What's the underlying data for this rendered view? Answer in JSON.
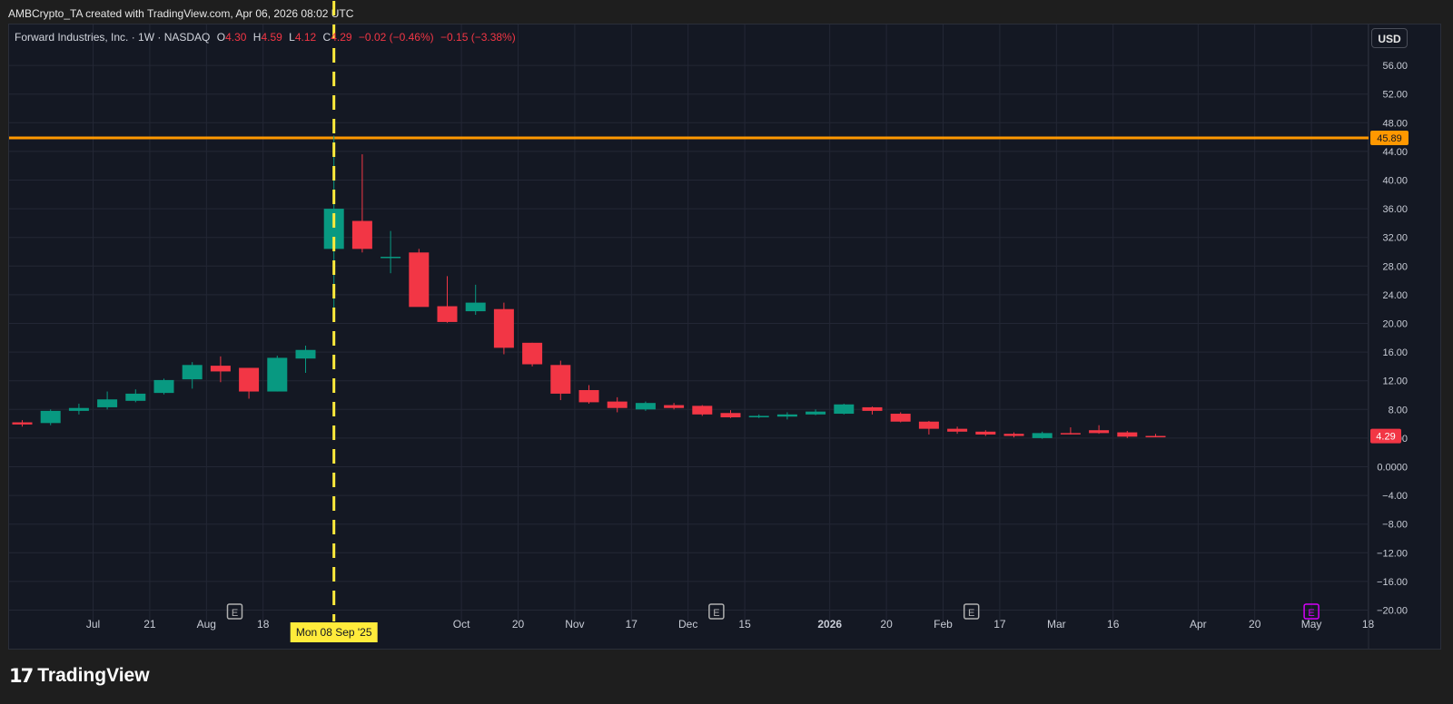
{
  "credit": "AMBCrypto_TA created with TradingView.com, Apr 06, 2026 08:02 UTC",
  "legend": {
    "symbol": "Forward Industries, Inc. · 1W · NASDAQ",
    "o_label": "O",
    "o_value": "4.30",
    "h_label": "H",
    "h_value": "4.59",
    "l_label": "L",
    "l_value": "4.12",
    "c_label": "C",
    "c_value": "4.29",
    "change": "−0.02 (−0.46%)",
    "change2": "−0.15 (−3.38%)"
  },
  "currency_button": "USD",
  "brand": "TradingView",
  "colors": {
    "up": "#089981",
    "down": "#f23645",
    "level_line": "#ff9800",
    "crosshair": "#ffeb3b",
    "earnings": "#b0b0b0",
    "earnings_future": "#d500f9"
  },
  "chart_data": {
    "type": "candlestick",
    "timeframe": "1W",
    "ylim": [
      -20,
      56
    ],
    "y_ticks": [
      "56.00",
      "52.00",
      "48.00",
      "44.00",
      "40.00",
      "36.00",
      "32.00",
      "28.00",
      "24.00",
      "20.00",
      "16.00",
      "12.00",
      "8.00",
      "4.00",
      "0.0000",
      "−4.00",
      "−8.00",
      "−12.00",
      "−16.00",
      "−20.00"
    ],
    "x_ticks": [
      {
        "label": "Jul",
        "idx": 2.5,
        "bold": false
      },
      {
        "label": "21",
        "idx": 4.5,
        "bold": false
      },
      {
        "label": "Aug",
        "idx": 6.5,
        "bold": false
      },
      {
        "label": "18",
        "idx": 8.5,
        "bold": false
      },
      {
        "label": "Oct",
        "idx": 15.5,
        "bold": false
      },
      {
        "label": "20",
        "idx": 17.5,
        "bold": false
      },
      {
        "label": "Nov",
        "idx": 19.5,
        "bold": false
      },
      {
        "label": "17",
        "idx": 21.5,
        "bold": false
      },
      {
        "label": "Dec",
        "idx": 23.5,
        "bold": false
      },
      {
        "label": "15",
        "idx": 25.5,
        "bold": false
      },
      {
        "label": "2026",
        "idx": 28.5,
        "bold": true
      },
      {
        "label": "20",
        "idx": 30.5,
        "bold": false
      },
      {
        "label": "Feb",
        "idx": 32.5,
        "bold": false
      },
      {
        "label": "17",
        "idx": 34.5,
        "bold": false
      },
      {
        "label": "Mar",
        "idx": 36.5,
        "bold": false
      },
      {
        "label": "16",
        "idx": 38.5,
        "bold": false
      },
      {
        "label": "Apr",
        "idx": 41.5,
        "bold": false
      },
      {
        "label": "20",
        "idx": 43.5,
        "bold": false
      },
      {
        "label": "May",
        "idx": 45.5,
        "bold": false
      },
      {
        "label": "18",
        "idx": 47.5,
        "bold": false
      }
    ],
    "candles": [
      {
        "o": 6.2,
        "h": 6.5,
        "l": 5.6,
        "c": 5.9
      },
      {
        "o": 6.1,
        "h": 8.0,
        "l": 5.8,
        "c": 7.8
      },
      {
        "o": 7.8,
        "h": 8.8,
        "l": 7.3,
        "c": 8.2
      },
      {
        "o": 8.3,
        "h": 10.5,
        "l": 8.0,
        "c": 9.4
      },
      {
        "o": 9.2,
        "h": 10.8,
        "l": 9.0,
        "c": 10.2
      },
      {
        "o": 10.3,
        "h": 12.3,
        "l": 10.1,
        "c": 12.1
      },
      {
        "o": 12.2,
        "h": 14.6,
        "l": 10.9,
        "c": 14.2
      },
      {
        "o": 14.1,
        "h": 15.4,
        "l": 11.8,
        "c": 13.3
      },
      {
        "o": 13.8,
        "h": 13.8,
        "l": 9.5,
        "c": 10.5
      },
      {
        "o": 10.5,
        "h": 15.5,
        "l": 10.5,
        "c": 15.2
      },
      {
        "o": 15.1,
        "h": 16.9,
        "l": 13.1,
        "c": 16.3
      },
      {
        "o": 30.4,
        "h": 46.2,
        "l": 21.0,
        "c": 36.0
      },
      {
        "o": 34.3,
        "h": 43.6,
        "l": 29.9,
        "c": 30.4
      },
      {
        "o": 29.2,
        "h": 32.9,
        "l": 27.0,
        "c": 29.3
      },
      {
        "o": 29.9,
        "h": 30.4,
        "l": 22.4,
        "c": 22.3
      },
      {
        "o": 22.4,
        "h": 26.6,
        "l": 20.1,
        "c": 20.2
      },
      {
        "o": 21.7,
        "h": 25.4,
        "l": 21.2,
        "c": 22.9
      },
      {
        "o": 22.0,
        "h": 22.9,
        "l": 15.7,
        "c": 16.6
      },
      {
        "o": 17.3,
        "h": 17.3,
        "l": 14.0,
        "c": 14.3
      },
      {
        "o": 14.2,
        "h": 14.8,
        "l": 9.3,
        "c": 10.2
      },
      {
        "o": 10.7,
        "h": 11.4,
        "l": 8.8,
        "c": 9.0
      },
      {
        "o": 9.1,
        "h": 9.7,
        "l": 7.6,
        "c": 8.2
      },
      {
        "o": 8.0,
        "h": 9.1,
        "l": 7.8,
        "c": 8.9
      },
      {
        "o": 8.6,
        "h": 8.9,
        "l": 8.0,
        "c": 8.2
      },
      {
        "o": 8.5,
        "h": 8.6,
        "l": 7.1,
        "c": 7.3
      },
      {
        "o": 7.5,
        "h": 7.9,
        "l": 6.8,
        "c": 6.9
      },
      {
        "o": 6.9,
        "h": 7.3,
        "l": 6.8,
        "c": 7.1
      },
      {
        "o": 7.0,
        "h": 7.6,
        "l": 6.6,
        "c": 7.3
      },
      {
        "o": 7.3,
        "h": 8.0,
        "l": 7.2,
        "c": 7.7
      },
      {
        "o": 7.4,
        "h": 8.8,
        "l": 7.3,
        "c": 8.7
      },
      {
        "o": 8.3,
        "h": 8.4,
        "l": 7.3,
        "c": 7.8
      },
      {
        "o": 7.4,
        "h": 7.6,
        "l": 6.2,
        "c": 6.3
      },
      {
        "o": 6.3,
        "h": 6.4,
        "l": 4.5,
        "c": 5.3
      },
      {
        "o": 5.3,
        "h": 5.6,
        "l": 4.6,
        "c": 4.9
      },
      {
        "o": 4.9,
        "h": 5.1,
        "l": 4.3,
        "c": 4.5
      },
      {
        "o": 4.6,
        "h": 4.8,
        "l": 4.1,
        "c": 4.3
      },
      {
        "o": 4.0,
        "h": 4.9,
        "l": 3.9,
        "c": 4.7
      },
      {
        "o": 4.7,
        "h": 5.5,
        "l": 4.5,
        "c": 4.6
      },
      {
        "o": 5.1,
        "h": 5.8,
        "l": 4.6,
        "c": 4.7
      },
      {
        "o": 4.8,
        "h": 5.0,
        "l": 4.0,
        "c": 4.2
      },
      {
        "o": 4.3,
        "h": 4.59,
        "l": 4.12,
        "c": 4.29
      }
    ],
    "horizontal_line": {
      "value": 45.89,
      "label": "45.89"
    },
    "last_price": {
      "value": 4.29,
      "label": "4.29"
    },
    "crosshair": {
      "idx": 11,
      "label": "Mon 08 Sep '25"
    },
    "earnings_markers": [
      {
        "idx": 7.5,
        "label": "E",
        "future": false
      },
      {
        "idx": 24.5,
        "label": "E",
        "future": false
      },
      {
        "idx": 33.5,
        "label": "E",
        "future": false
      },
      {
        "idx": 45.5,
        "label": "E",
        "future": true
      }
    ]
  }
}
